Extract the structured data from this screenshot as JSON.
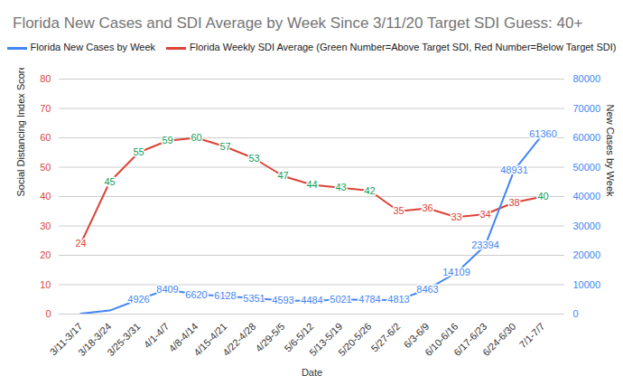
{
  "chart_data": {
    "type": "line",
    "title": "Florida New Cases and SDI Average by Week Since 3/11/20 Target SDI Guess: 40+",
    "x_label": "Date",
    "y_label": "Social Distancing Index Score (SDI)",
    "y2_label": "New Cases by Week",
    "categories": [
      "3/11-3/17",
      "3/18-3/24",
      "3/25-3/31",
      "4/1-4/7",
      "4/8-4/14",
      "4/15-4/21",
      "4/22-4/28",
      "4/29-5/5",
      "5/6-5/12",
      "5/13-5/19",
      "5/20-5/26",
      "5/27-6/2",
      "6/3-6/9",
      "6/10-6/16",
      "6/17-6/23",
      "6/24-6/30",
      "7/1-7/7"
    ],
    "series": [
      {
        "name": "Florida New Cases by Week",
        "color": "#4285f4",
        "axis": "y2",
        "values": [
          150,
          1200,
          4926,
          8409,
          6620,
          6128,
          5351,
          4593,
          4484,
          5021,
          4784,
          4813,
          8463,
          14109,
          23394,
          48931,
          61360
        ],
        "value_labels": [
          null,
          null,
          "4926",
          "8409",
          "6620",
          "6128",
          "5351",
          "4593",
          "4484",
          "5021",
          "4784",
          "4813",
          "8463",
          "14109",
          "23394",
          "48931",
          "61360"
        ]
      },
      {
        "name": "Florida Weekly SDI Average (Green Number=Above Target SDI, Red Number=Below Target SDI)",
        "color": "#db4437",
        "values": [
          24,
          45,
          55,
          59,
          60,
          57,
          53,
          47,
          44,
          43,
          42,
          35,
          36,
          33,
          34,
          38,
          40
        ],
        "colors": [
          "#db4437",
          "#0f9d58",
          "#0f9d58",
          "#0f9d58",
          "#0f9d58",
          "#0f9d58",
          "#0f9d58",
          "#0f9d58",
          "#0f9d58",
          "#0f9d58",
          "#0f9d58",
          "#db4437",
          "#db4437",
          "#db4437",
          "#db4437",
          "#db4437",
          "#0f9d58"
        ]
      }
    ],
    "ylim": [
      0,
      80
    ],
    "yticks": [
      0,
      10,
      20,
      30,
      40,
      50,
      60,
      70,
      80
    ],
    "y2lim": [
      0,
      80000
    ],
    "y2ticks": [
      0,
      10000,
      20000,
      30000,
      40000,
      50000,
      60000,
      70000,
      80000
    ],
    "grid": true,
    "legend": "top",
    "data_labels": true
  }
}
